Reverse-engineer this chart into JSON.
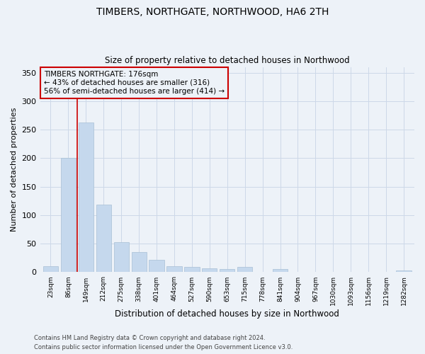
{
  "title": "TIMBERS, NORTHGATE, NORTHWOOD, HA6 2TH",
  "subtitle": "Size of property relative to detached houses in Northwood",
  "xlabel": "Distribution of detached houses by size in Northwood",
  "ylabel": "Number of detached properties",
  "categories": [
    "23sqm",
    "86sqm",
    "149sqm",
    "212sqm",
    "275sqm",
    "338sqm",
    "401sqm",
    "464sqm",
    "527sqm",
    "590sqm",
    "653sqm",
    "715sqm",
    "778sqm",
    "841sqm",
    "904sqm",
    "967sqm",
    "1030sqm",
    "1093sqm",
    "1156sqm",
    "1219sqm",
    "1282sqm"
  ],
  "values": [
    11,
    200,
    262,
    118,
    53,
    35,
    22,
    10,
    9,
    7,
    6,
    9,
    0,
    5,
    0,
    0,
    0,
    0,
    0,
    0,
    3
  ],
  "bar_color": "#c5d8ed",
  "bar_edge_color": "#a8bfd4",
  "grid_color": "#cdd8e8",
  "background_color": "#edf2f8",
  "annotation_box_text": "TIMBERS NORTHGATE: 176sqm\n← 43% of detached houses are smaller (316)\n56% of semi-detached houses are larger (414) →",
  "annotation_box_color": "#cc0000",
  "vline_index": 2,
  "vline_color": "#cc0000",
  "ylim": [
    0,
    360
  ],
  "yticks": [
    0,
    50,
    100,
    150,
    200,
    250,
    300,
    350
  ],
  "footer_line1": "Contains HM Land Registry data © Crown copyright and database right 2024.",
  "footer_line2": "Contains public sector information licensed under the Open Government Licence v3.0."
}
